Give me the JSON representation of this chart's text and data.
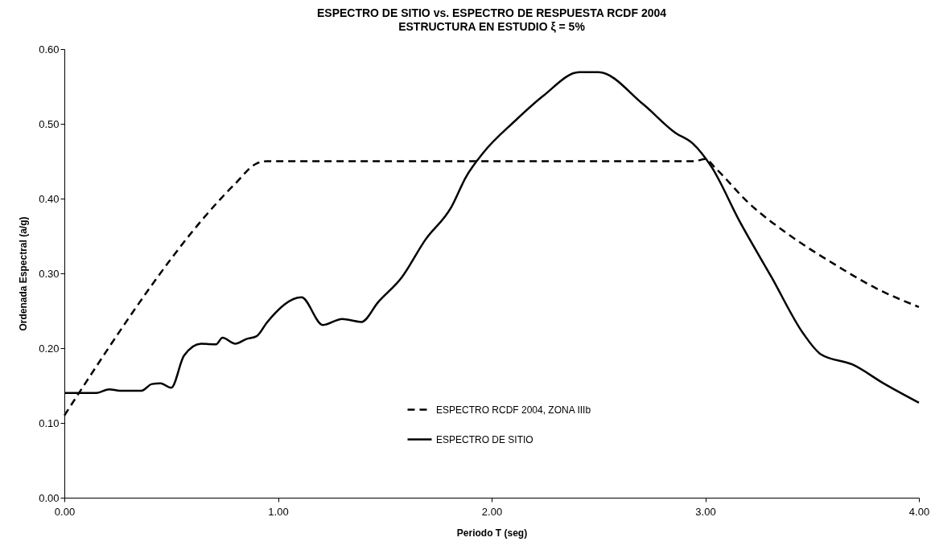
{
  "chart_data": {
    "type": "line",
    "title": [
      "ESPECTRO DE SITIO vs. ESPECTRO DE RESPUESTA RCDF 2004",
      "ESTRUCTURA EN ESTUDIO ξ = 5%"
    ],
    "xlabel": "Periodo T (seg)",
    "ylabel": "Ordenada Espectral  (a/g)",
    "xlim": [
      0,
      4
    ],
    "xticks": [
      {
        "value": 0,
        "label": "0.00"
      },
      {
        "value": 1,
        "label": "1.00"
      },
      {
        "value": 2,
        "label": "2.00"
      },
      {
        "value": 3,
        "label": "3.00"
      },
      {
        "value": 4,
        "label": "4.00"
      }
    ],
    "ylim": [
      0,
      0.6
    ],
    "yticks": [
      {
        "value": 0,
        "label": "0.00"
      },
      {
        "value": 0.1,
        "label": "0.10"
      },
      {
        "value": 0.2,
        "label": "0.20"
      },
      {
        "value": 0.3,
        "label": "0.30"
      },
      {
        "value": 0.4,
        "label": "0.40"
      },
      {
        "value": 0.5,
        "label": "0.50"
      },
      {
        "value": 0.6,
        "label": "0.60"
      }
    ],
    "grid": false,
    "legend": "bottom",
    "marker": "none",
    "series": [
      {
        "name": "ESPECTRO RCDF 2004, ZONA IIIb",
        "color": "#000000",
        "line_style": "dashed",
        "x": [
          0,
          0.8,
          0.9,
          0.95,
          2.95,
          3.0,
          3.05,
          3.2,
          3.4,
          3.6,
          3.8,
          4.0
        ],
        "values": [
          0.11,
          0.42,
          0.447,
          0.45,
          0.45,
          0.453,
          0.44,
          0.395,
          0.35,
          0.313,
          0.28,
          0.255
        ]
      },
      {
        "name": "ESPECTRO DE SITIO",
        "color": "#000000",
        "line_style": "solid",
        "x": [
          0,
          0.15,
          0.21,
          0.26,
          0.36,
          0.41,
          0.45,
          0.5,
          0.56,
          0.64,
          0.71,
          0.74,
          0.8,
          0.85,
          0.9,
          0.95,
          1.11,
          1.21,
          1.3,
          1.39,
          1.47,
          1.58,
          1.69,
          1.81,
          1.88,
          1.96,
          2.11,
          2.24,
          2.41,
          2.5,
          2.71,
          2.86,
          2.94,
          3.03,
          3.16,
          3.31,
          3.46,
          3.54,
          3.69,
          3.84,
          4.0
        ],
        "values": [
          0.14,
          0.14,
          0.145,
          0.143,
          0.143,
          0.152,
          0.153,
          0.147,
          0.19,
          0.206,
          0.205,
          0.214,
          0.206,
          0.212,
          0.216,
          0.235,
          0.268,
          0.231,
          0.239,
          0.235,
          0.262,
          0.295,
          0.345,
          0.388,
          0.429,
          0.461,
          0.504,
          0.537,
          0.569,
          0.569,
          0.526,
          0.488,
          0.474,
          0.442,
          0.37,
          0.295,
          0.219,
          0.192,
          0.178,
          0.152,
          0.127
        ]
      }
    ]
  }
}
